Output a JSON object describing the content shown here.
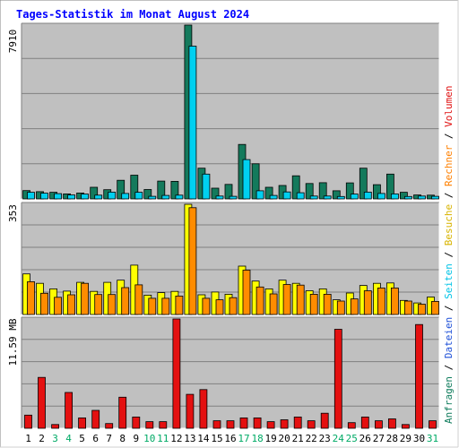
{
  "chart_data": {
    "type": "bar",
    "title": "Tages-Statistik im Monat August 2024",
    "categories": [
      "1",
      "2",
      "3",
      "4",
      "5",
      "6",
      "7",
      "8",
      "9",
      "10",
      "11",
      "12",
      "13",
      "14",
      "15",
      "16",
      "17",
      "18",
      "19",
      "20",
      "21",
      "22",
      "23",
      "24",
      "25",
      "26",
      "27",
      "28",
      "29",
      "30",
      "31"
    ],
    "weekend_days": [
      "3",
      "4",
      "10",
      "11",
      "17",
      "18",
      "24",
      "25",
      "31"
    ],
    "grid": true,
    "legend_placement": "right, vertical",
    "legend": [
      {
        "text": "Anfragen",
        "color": "#0f7c5c"
      },
      {
        "text": "Dateien",
        "color": "#1e50d8"
      },
      {
        "text": "Seiten",
        "color": "#00c3e6"
      },
      {
        "text": "Besuche",
        "color": "#d8b400"
      },
      {
        "text": "Rechner",
        "color": "#ff8000"
      },
      {
        "text": "Volumen",
        "color": "#e01010"
      }
    ],
    "legend_separator": " / ",
    "panels": [
      {
        "id": "hits",
        "max_label": "7910",
        "ylim": [
          0,
          7910
        ],
        "series": [
          {
            "name": "Anfragen",
            "color": "#147a5c",
            "values": [
              380,
              330,
              300,
              230,
              270,
              530,
              420,
              850,
              1080,
              430,
              810,
              800,
              7910,
              1400,
              490,
              660,
              2480,
              1600,
              530,
              610,
              1050,
              700,
              740,
              370,
              730,
              1400,
              650,
              1130,
              300,
              180,
              170
            ]
          },
          {
            "name": "Dateien",
            "color": "#00d0f0",
            "values": [
              300,
              260,
              240,
              180,
              220,
              170,
              310,
              250,
              300,
              120,
              160,
              170,
              6950,
              1130,
              130,
              120,
              1790,
              370,
              160,
              320,
              280,
              130,
              130,
              110,
              220,
              310,
              250,
              230,
              110,
              130,
              120
            ]
          }
        ]
      },
      {
        "id": "visits",
        "max_label": "353",
        "ylim": [
          0,
          353
        ],
        "series": [
          {
            "name": "Besuche",
            "color": "#ffff00",
            "values": [
              130,
              100,
              82,
              75,
              103,
              74,
              103,
              110,
              158,
              62,
              70,
              74,
              353,
              63,
              72,
              65,
              155,
              107,
              82,
              110,
              100,
              76,
              82,
              47,
              69,
              93,
              100,
              101,
              45,
              37,
              56
            ]
          },
          {
            "name": "Rechner",
            "color": "#ff8c00",
            "values": [
              105,
              68,
              55,
              63,
              100,
              64,
              64,
              86,
              95,
              52,
              52,
              59,
              342,
              52,
              47,
              54,
              142,
              88,
              66,
              96,
              94,
              65,
              65,
              43,
              50,
              76,
              85,
              85,
              43,
              33,
              42
            ]
          }
        ]
      },
      {
        "id": "volume",
        "max_label": "11.59 MB",
        "ylim": [
          0,
          11.59
        ],
        "series": [
          {
            "name": "Volumen",
            "color": "#e41010",
            "values": [
              1.4,
              5.4,
              0.4,
              3.8,
              1.1,
              1.9,
              0.5,
              3.3,
              1.2,
              0.7,
              0.7,
              11.59,
              3.6,
              4.1,
              0.8,
              0.8,
              1.1,
              1.1,
              0.7,
              0.9,
              1.2,
              0.8,
              1.6,
              10.5,
              0.6,
              1.2,
              0.8,
              1.0,
              0.4,
              11.0,
              0.8
            ]
          }
        ]
      }
    ]
  },
  "colors": {
    "plot_bg": "#c0c0c0",
    "gridline": "#808080",
    "title": "#0000ff",
    "day_label": "#000000",
    "weekend_label": "#00aa66",
    "frame_outer": "#808080",
    "frame_inner": "#ffffff"
  }
}
